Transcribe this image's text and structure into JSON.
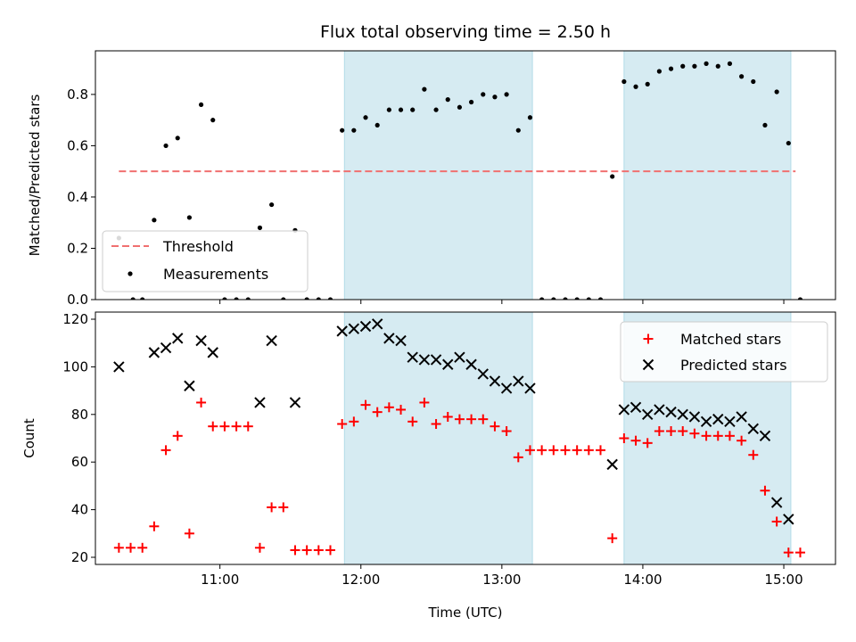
{
  "title": "Flux total observing time = 2.50 h",
  "chart_data": [
    {
      "type": "scatter",
      "panel": "top",
      "ylabel": "Matched/Predicted stars",
      "xlabel": "",
      "xlim": [
        "10:07",
        "15:22"
      ],
      "ylim": [
        0,
        0.97
      ],
      "yticks": [
        0.0,
        0.2,
        0.4,
        0.6,
        0.8
      ],
      "ytick_labels": [
        "0.0",
        "0.2",
        "0.4",
        "0.6",
        "0.8"
      ],
      "threshold": {
        "name": "Threshold",
        "value": 0.5,
        "x_start": "10:17",
        "x_end": "15:05",
        "color": "#f07070"
      },
      "legend": {
        "position": "lower-left",
        "entries": [
          "Threshold",
          "Measurements"
        ]
      },
      "shaded_regions": [
        [
          "11:53",
          "13:13"
        ],
        [
          "13:52",
          "15:03"
        ]
      ],
      "series": [
        {
          "name": "Measurements",
          "color": "#000000",
          "marker": "dot",
          "x": [
            "10:17",
            "10:23",
            "10:27",
            "10:32",
            "10:37",
            "10:42",
            "10:47",
            "10:52",
            "10:57",
            "11:02",
            "11:07",
            "11:12",
            "11:17",
            "11:22",
            "11:27",
            "11:32",
            "11:37",
            "11:42",
            "11:47",
            "11:52",
            "11:57",
            "12:02",
            "12:07",
            "12:12",
            "12:17",
            "12:22",
            "12:27",
            "12:32",
            "12:37",
            "12:42",
            "12:47",
            "12:52",
            "12:57",
            "13:02",
            "13:07",
            "13:12",
            "13:17",
            "13:22",
            "13:27",
            "13:32",
            "13:37",
            "13:42",
            "13:47",
            "13:52",
            "13:57",
            "14:02",
            "14:07",
            "14:12",
            "14:17",
            "14:22",
            "14:27",
            "14:32",
            "14:37",
            "14:42",
            "14:47",
            "14:52",
            "14:57",
            "15:02",
            "15:07"
          ],
          "y": [
            0.24,
            0.0,
            0.0,
            0.31,
            0.6,
            0.63,
            0.32,
            0.76,
            0.7,
            0.0,
            0.0,
            0.0,
            0.28,
            0.37,
            0.0,
            0.27,
            0.0,
            0.0,
            0.0,
            0.66,
            0.66,
            0.71,
            0.68,
            0.74,
            0.74,
            0.74,
            0.82,
            0.74,
            0.78,
            0.75,
            0.77,
            0.8,
            0.79,
            0.8,
            0.66,
            0.71,
            0.0,
            0.0,
            0.0,
            0.0,
            0.0,
            0.0,
            0.48,
            0.85,
            0.83,
            0.84,
            0.89,
            0.9,
            0.91,
            0.91,
            0.92,
            0.91,
            0.92,
            0.87,
            0.85,
            0.68,
            0.81,
            0.61,
            0.0
          ]
        }
      ]
    },
    {
      "type": "scatter",
      "panel": "bottom",
      "xlabel": "Time (UTC)",
      "ylabel": "Count",
      "xlim": [
        "10:07",
        "15:22"
      ],
      "ylim": [
        17,
        123
      ],
      "xticks": [
        "11:00",
        "12:00",
        "13:00",
        "14:00",
        "15:00"
      ],
      "yticks": [
        20,
        40,
        60,
        80,
        100,
        120
      ],
      "legend": {
        "position": "top-right",
        "entries": [
          "Matched stars",
          "Predicted stars"
        ]
      },
      "shaded_regions": [
        [
          "11:53",
          "13:13"
        ],
        [
          "13:52",
          "15:03"
        ]
      ],
      "series": [
        {
          "name": "Matched stars",
          "color": "#ff0000",
          "marker": "plus",
          "x": [
            "10:17",
            "10:22",
            "10:27",
            "10:32",
            "10:37",
            "10:42",
            "10:47",
            "10:52",
            "10:57",
            "11:02",
            "11:07",
            "11:12",
            "11:17",
            "11:22",
            "11:27",
            "11:32",
            "11:37",
            "11:42",
            "11:47",
            "11:52",
            "11:57",
            "12:02",
            "12:07",
            "12:12",
            "12:17",
            "12:22",
            "12:27",
            "12:32",
            "12:37",
            "12:42",
            "12:47",
            "12:52",
            "12:57",
            "13:02",
            "13:07",
            "13:12",
            "13:17",
            "13:22",
            "13:27",
            "13:32",
            "13:37",
            "13:42",
            "13:47",
            "13:52",
            "13:57",
            "14:02",
            "14:07",
            "14:12",
            "14:17",
            "14:22",
            "14:27",
            "14:32",
            "14:37",
            "14:42",
            "14:47",
            "14:52",
            "14:57",
            "15:02",
            "15:07"
          ],
          "y": [
            24,
            24,
            24,
            33,
            65,
            71,
            30,
            85,
            75,
            75,
            75,
            75,
            24,
            41,
            41,
            23,
            23,
            23,
            23,
            76,
            77,
            84,
            81,
            83,
            82,
            77,
            85,
            76,
            79,
            78,
            78,
            78,
            75,
            73,
            62,
            65,
            65,
            65,
            65,
            65,
            65,
            65,
            28,
            70,
            69,
            68,
            73,
            73,
            73,
            72,
            71,
            71,
            71,
            69,
            63,
            48,
            35,
            22,
            22
          ]
        },
        {
          "name": "Predicted stars",
          "color": "#000000",
          "marker": "x",
          "x": [
            "10:17",
            "10:32",
            "10:37",
            "10:42",
            "10:47",
            "10:52",
            "10:57",
            "11:17",
            "11:22",
            "11:32",
            "11:52",
            "11:57",
            "12:02",
            "12:07",
            "12:12",
            "12:17",
            "12:22",
            "12:27",
            "12:32",
            "12:37",
            "12:42",
            "12:47",
            "12:52",
            "12:57",
            "13:02",
            "13:07",
            "13:12",
            "13:47",
            "13:52",
            "13:57",
            "14:02",
            "14:07",
            "14:12",
            "14:17",
            "14:22",
            "14:27",
            "14:32",
            "14:37",
            "14:42",
            "14:47",
            "14:52",
            "14:57",
            "15:02"
          ],
          "y": [
            100,
            106,
            108,
            112,
            92,
            111,
            106,
            85,
            111,
            85,
            115,
            116,
            117,
            118,
            112,
            111,
            104,
            103,
            103,
            101,
            104,
            101,
            97,
            94,
            91,
            94,
            91,
            59,
            82,
            83,
            80,
            82,
            81,
            80,
            79,
            77,
            78,
            77,
            79,
            74,
            71,
            43,
            36
          ]
        }
      ]
    }
  ]
}
